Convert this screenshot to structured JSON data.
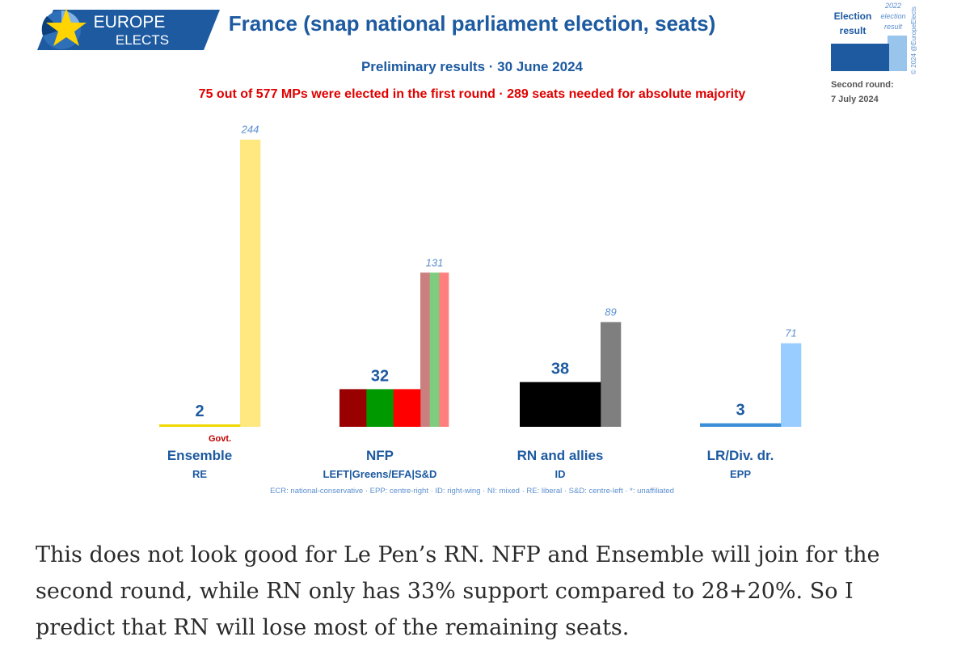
{
  "header": {
    "logo_line1": "EUROPE",
    "logo_line2": "ELECTS",
    "title": "France (snap national parliament election, seats)",
    "subtitle": "Preliminary results · 30 June 2024",
    "note": "75 out of 577 MPs were elected in the first round · 289 seats needed for absolute majority"
  },
  "legend_box": {
    "result_label_1": "Election",
    "result_label_2": "result",
    "prev_label_1": "2022",
    "prev_label_2": "election",
    "prev_label_3": "result",
    "copyright": "© 2024 @EuropeElects",
    "second_round_label": "Second round:",
    "second_round_date": "7 July 2024"
  },
  "chart_data": {
    "type": "bar",
    "title": "France (snap national parliament election, seats)",
    "categories": [
      "Ensemble",
      "NFP",
      "RN and allies",
      "LR/Div. dr."
    ],
    "groups": [
      "RE",
      "LEFT|Greens/EFA|S&D",
      "ID",
      "EPP"
    ],
    "series": [
      {
        "name": "Election result",
        "values": [
          2,
          32,
          38,
          3
        ]
      },
      {
        "name": "2022 election result",
        "values": [
          244,
          131,
          89,
          71
        ]
      }
    ],
    "annotations": {
      "govt_label": "Govt."
    },
    "footnote": "ECR: national-conservative · EPP: centre-right · ID: right-wing · NI: mixed · RE: liberal · S&D: centre-left · *: unaffiliated",
    "ylim": [
      0,
      250
    ],
    "colors": {
      "current": [
        "#f0d800",
        [
          "#990000",
          "#009900",
          "#ff0000"
        ],
        "#000000",
        "#3a8fd8"
      ],
      "previous": [
        "#ffe880",
        [
          "#cc7f7f",
          "#7fcc7f",
          "#ff7f7f"
        ],
        "#7f7f7f",
        "#99ccff"
      ],
      "title": "#1d5aa0",
      "label": "#1d5aa0",
      "prev_label": "#5b8fcf",
      "note": "#e00000"
    }
  },
  "post_text": "This does not look good for Le Pen’s RN. NFP and Ensemble will join for the second round, while RN only has 33% support compared to 28+20%. So I predict that RN will lose most of the remaining seats."
}
